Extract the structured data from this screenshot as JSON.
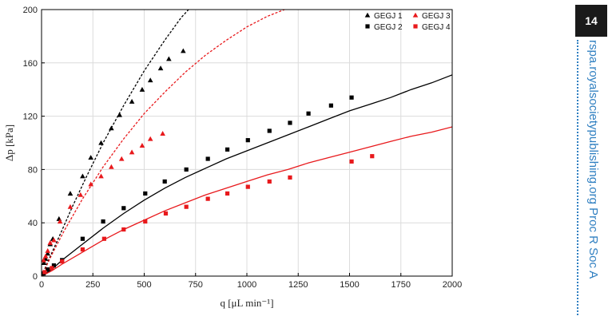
{
  "page_number": "14",
  "journal_side_text": "rspa.royalsocietypublishing.org  Proc R Soc A",
  "colors": {
    "black": "#000000",
    "red": "#e8191c",
    "accent": "#2f7fc1"
  },
  "chart_data": {
    "type": "scatter",
    "xlabel": "q [μL min⁻¹]",
    "ylabel": "Δp [kPa]",
    "xlim": [
      0,
      2000
    ],
    "ylim": [
      0,
      200
    ],
    "x_ticks": [
      "0",
      "250",
      "500",
      "750",
      "1000",
      "1250",
      "1500",
      "1750",
      "2000"
    ],
    "y_ticks": [
      "0",
      "40",
      "80",
      "120",
      "160",
      "200"
    ],
    "grid": true,
    "legend_position": "top-right",
    "series": [
      {
        "name": "GEGJ 1",
        "color": "#000000",
        "marker": "triangle",
        "points": [
          [
            12,
            10
          ],
          [
            20,
            13
          ],
          [
            30,
            17
          ],
          [
            42,
            24
          ],
          [
            55,
            28
          ],
          [
            85,
            43
          ],
          [
            140,
            62
          ],
          [
            200,
            75
          ],
          [
            240,
            89
          ],
          [
            290,
            100
          ],
          [
            340,
            111
          ],
          [
            380,
            121
          ],
          [
            440,
            131
          ],
          [
            490,
            140
          ],
          [
            530,
            147
          ],
          [
            580,
            156
          ],
          [
            620,
            163
          ],
          [
            690,
            169
          ]
        ]
      },
      {
        "name": "GEGJ 2",
        "color": "#000000",
        "marker": "square",
        "points": [
          [
            10,
            2
          ],
          [
            30,
            5
          ],
          [
            60,
            8
          ],
          [
            100,
            12
          ],
          [
            200,
            28
          ],
          [
            300,
            41
          ],
          [
            400,
            51
          ],
          [
            505,
            62
          ],
          [
            600,
            71
          ],
          [
            705,
            80
          ],
          [
            810,
            88
          ],
          [
            905,
            95
          ],
          [
            1005,
            102
          ],
          [
            1110,
            109
          ],
          [
            1210,
            115
          ],
          [
            1300,
            122
          ],
          [
            1410,
            128
          ],
          [
            1510,
            134
          ]
        ]
      },
      {
        "name": "GEGJ 3",
        "color": "#e8191c",
        "marker": "triangle",
        "points": [
          [
            10,
            12
          ],
          [
            20,
            15
          ],
          [
            30,
            19
          ],
          [
            42,
            25
          ],
          [
            60,
            27
          ],
          [
            90,
            41
          ],
          [
            140,
            52
          ],
          [
            190,
            61
          ],
          [
            240,
            69
          ],
          [
            290,
            75
          ],
          [
            340,
            82
          ],
          [
            390,
            88
          ],
          [
            440,
            93
          ],
          [
            490,
            98
          ],
          [
            530,
            103
          ],
          [
            590,
            107
          ]
        ]
      },
      {
        "name": "GEGJ 4",
        "color": "#e8191c",
        "marker": "square",
        "points": [
          [
            15,
            3
          ],
          [
            50,
            6
          ],
          [
            100,
            11
          ],
          [
            200,
            20
          ],
          [
            305,
            28
          ],
          [
            400,
            35
          ],
          [
            505,
            41
          ],
          [
            605,
            47
          ],
          [
            705,
            52
          ],
          [
            810,
            58
          ],
          [
            905,
            62
          ],
          [
            1005,
            67
          ],
          [
            1110,
            71
          ],
          [
            1210,
            74
          ],
          [
            1510,
            86
          ],
          [
            1610,
            90
          ]
        ]
      }
    ],
    "model_curves": [
      {
        "color": "#000000",
        "style": "dashed",
        "points": [
          [
            0,
            0
          ],
          [
            40,
            14
          ],
          [
            90,
            31
          ],
          [
            150,
            52
          ],
          [
            220,
            75
          ],
          [
            300,
            100
          ],
          [
            400,
            128
          ],
          [
            500,
            154
          ],
          [
            600,
            177
          ],
          [
            680,
            194
          ],
          [
            740,
            204
          ]
        ]
      },
      {
        "color": "#e8191c",
        "style": "dashed",
        "points": [
          [
            0,
            0
          ],
          [
            50,
            16
          ],
          [
            110,
            34
          ],
          [
            200,
            58
          ],
          [
            300,
            82
          ],
          [
            400,
            103
          ],
          [
            500,
            122
          ],
          [
            600,
            138
          ],
          [
            700,
            153
          ],
          [
            800,
            166
          ],
          [
            900,
            177
          ],
          [
            1000,
            187
          ],
          [
            1100,
            195
          ],
          [
            1200,
            201
          ]
        ]
      },
      {
        "color": "#000000",
        "style": "solid",
        "points": [
          [
            0,
            0
          ],
          [
            50,
            5
          ],
          [
            100,
            12
          ],
          [
            200,
            24
          ],
          [
            300,
            36
          ],
          [
            400,
            47
          ],
          [
            500,
            57
          ],
          [
            600,
            66
          ],
          [
            700,
            74
          ],
          [
            800,
            81
          ],
          [
            900,
            88
          ],
          [
            1000,
            94
          ],
          [
            1100,
            100
          ],
          [
            1200,
            106
          ],
          [
            1300,
            112
          ],
          [
            1400,
            118
          ],
          [
            1500,
            124
          ],
          [
            1600,
            129
          ],
          [
            1700,
            134
          ],
          [
            1800,
            140
          ],
          [
            1900,
            145
          ],
          [
            2000,
            151
          ]
        ]
      },
      {
        "color": "#e8191c",
        "style": "solid",
        "points": [
          [
            0,
            0
          ],
          [
            50,
            4
          ],
          [
            100,
            9
          ],
          [
            200,
            18
          ],
          [
            300,
            27
          ],
          [
            400,
            35
          ],
          [
            500,
            42
          ],
          [
            600,
            49
          ],
          [
            700,
            55
          ],
          [
            800,
            61
          ],
          [
            900,
            66
          ],
          [
            1000,
            71
          ],
          [
            1100,
            76
          ],
          [
            1200,
            80
          ],
          [
            1300,
            85
          ],
          [
            1400,
            89
          ],
          [
            1500,
            93
          ],
          [
            1600,
            97
          ],
          [
            1700,
            101
          ],
          [
            1800,
            105
          ],
          [
            1900,
            108
          ],
          [
            2000,
            112
          ]
        ]
      }
    ]
  }
}
